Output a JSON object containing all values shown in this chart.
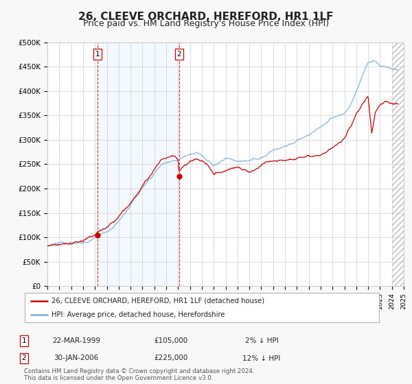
{
  "title": "26, CLEEVE ORCHARD, HEREFORD, HR1 1LF",
  "subtitle": "Price paid vs. HM Land Registry's House Price Index (HPI)",
  "red_label": "26, CLEEVE ORCHARD, HEREFORD, HR1 1LF (detached house)",
  "blue_label": "HPI: Average price, detached house, Herefordshire",
  "footnote1": "Contains HM Land Registry data © Crown copyright and database right 2024.",
  "footnote2": "This data is licensed under the Open Government Licence v3.0.",
  "marker1_date": "22-MAR-1999",
  "marker1_price": "£105,000",
  "marker1_hpi": "2% ↓ HPI",
  "marker1_year": 1999.22,
  "marker1_value": 105000,
  "marker2_date": "30-JAN-2006",
  "marker2_price": "£225,000",
  "marker2_hpi": "12% ↓ HPI",
  "marker2_year": 2006.08,
  "marker2_value": 225000,
  "xmin": 1995,
  "xmax": 2025,
  "ymin": 0,
  "ymax": 500000,
  "yticks": [
    0,
    50000,
    100000,
    150000,
    200000,
    250000,
    300000,
    350000,
    400000,
    450000,
    500000
  ],
  "ytick_labels": [
    "£0",
    "£50K",
    "£100K",
    "£150K",
    "£200K",
    "£250K",
    "£300K",
    "£350K",
    "£400K",
    "£450K",
    "£500K"
  ],
  "background_color": "#f8f8f8",
  "plot_bg_color": "#ffffff",
  "red_color": "#cc0000",
  "blue_color": "#7aaddb",
  "shade_color": "#ddeeff",
  "grid_color": "#cccccc",
  "title_fontsize": 11,
  "subtitle_fontsize": 9,
  "hpi_anchors": [
    [
      1995.0,
      82000
    ],
    [
      1996.0,
      84000
    ],
    [
      1997.0,
      87000
    ],
    [
      1998.0,
      90000
    ],
    [
      1999.0,
      97000
    ],
    [
      2000.0,
      110000
    ],
    [
      2001.0,
      132000
    ],
    [
      2002.0,
      165000
    ],
    [
      2003.0,
      200000
    ],
    [
      2004.0,
      230000
    ],
    [
      2004.5,
      245000
    ],
    [
      2005.0,
      255000
    ],
    [
      2005.5,
      258000
    ],
    [
      2006.0,
      262000
    ],
    [
      2006.5,
      270000
    ],
    [
      2007.0,
      278000
    ],
    [
      2007.5,
      282000
    ],
    [
      2008.0,
      276000
    ],
    [
      2008.5,
      262000
    ],
    [
      2009.0,
      252000
    ],
    [
      2009.5,
      258000
    ],
    [
      2010.0,
      265000
    ],
    [
      2010.5,
      263000
    ],
    [
      2011.0,
      260000
    ],
    [
      2011.5,
      258000
    ],
    [
      2012.0,
      255000
    ],
    [
      2012.5,
      258000
    ],
    [
      2013.0,
      262000
    ],
    [
      2013.5,
      268000
    ],
    [
      2014.0,
      278000
    ],
    [
      2015.0,
      288000
    ],
    [
      2016.0,
      298000
    ],
    [
      2017.0,
      310000
    ],
    [
      2017.5,
      318000
    ],
    [
      2018.0,
      328000
    ],
    [
      2018.5,
      335000
    ],
    [
      2019.0,
      342000
    ],
    [
      2019.5,
      348000
    ],
    [
      2020.0,
      352000
    ],
    [
      2020.5,
      368000
    ],
    [
      2021.0,
      398000
    ],
    [
      2021.5,
      430000
    ],
    [
      2022.0,
      455000
    ],
    [
      2022.5,
      462000
    ],
    [
      2023.0,
      450000
    ],
    [
      2023.5,
      448000
    ],
    [
      2024.0,
      445000
    ],
    [
      2024.5,
      443000
    ]
  ],
  "red_anchors": [
    [
      1995.0,
      82000
    ],
    [
      1996.0,
      83000
    ],
    [
      1997.0,
      86000
    ],
    [
      1998.0,
      89000
    ],
    [
      1999.0,
      96000
    ],
    [
      1999.22,
      105000
    ],
    [
      2000.0,
      112000
    ],
    [
      2001.0,
      130000
    ],
    [
      2002.0,
      160000
    ],
    [
      2003.0,
      195000
    ],
    [
      2004.0,
      228000
    ],
    [
      2004.5,
      242000
    ],
    [
      2005.0,
      252000
    ],
    [
      2005.5,
      255000
    ],
    [
      2006.0,
      248000
    ],
    [
      2006.08,
      225000
    ],
    [
      2006.5,
      238000
    ],
    [
      2007.0,
      248000
    ],
    [
      2007.5,
      252000
    ],
    [
      2008.0,
      248000
    ],
    [
      2008.5,
      238000
    ],
    [
      2009.0,
      218000
    ],
    [
      2009.5,
      225000
    ],
    [
      2010.0,
      232000
    ],
    [
      2010.5,
      238000
    ],
    [
      2011.0,
      240000
    ],
    [
      2011.5,
      236000
    ],
    [
      2012.0,
      230000
    ],
    [
      2012.5,
      232000
    ],
    [
      2013.0,
      238000
    ],
    [
      2013.5,
      244000
    ],
    [
      2014.0,
      250000
    ],
    [
      2015.0,
      258000
    ],
    [
      2016.0,
      265000
    ],
    [
      2017.0,
      272000
    ],
    [
      2017.5,
      276000
    ],
    [
      2018.0,
      278000
    ],
    [
      2018.5,
      280000
    ],
    [
      2019.0,
      288000
    ],
    [
      2019.5,
      295000
    ],
    [
      2020.0,
      300000
    ],
    [
      2020.5,
      318000
    ],
    [
      2021.0,
      348000
    ],
    [
      2021.5,
      368000
    ],
    [
      2022.0,
      385000
    ],
    [
      2022.3,
      308000
    ],
    [
      2022.6,
      352000
    ],
    [
      2023.0,
      368000
    ],
    [
      2023.5,
      375000
    ],
    [
      2024.0,
      372000
    ],
    [
      2024.5,
      374000
    ]
  ]
}
